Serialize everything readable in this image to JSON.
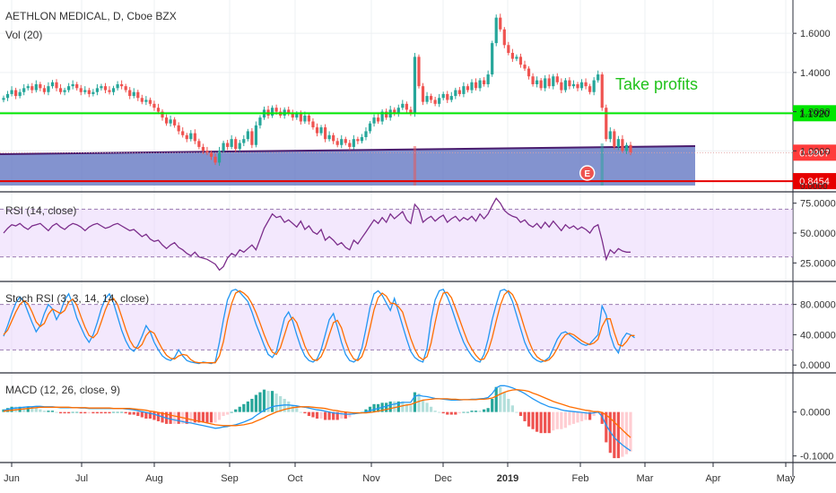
{
  "chart_data": {
    "type": "candlestick",
    "title": "AETHLON MEDICAL, D, Cboe BZX",
    "volume_label": "Vol (20)",
    "annotation": "Take profits",
    "earnings_marker": "E",
    "x_axis": {
      "ticks": [
        "Jun",
        "Jul",
        "Aug",
        "Sep",
        "Oct",
        "Nov",
        "Dec",
        "2019",
        "Feb",
        "Mar",
        "Apr",
        "May"
      ]
    },
    "price_panel": {
      "y_ticks": [
        "1.6000",
        "1.4000",
        "1.2000",
        "1.0000"
      ],
      "ylim": [
        0.8,
        1.77
      ],
      "horizontal_lines": [
        {
          "name": "resistance",
          "value": 1.192,
          "label": "1.1920",
          "color": "#00e600"
        },
        {
          "name": "support",
          "value": 0.8454,
          "label": "0.8454",
          "color": "#e60000"
        }
      ],
      "last_price": {
        "value": 0.9907,
        "label": "0.9907",
        "color": "#ff3b3b"
      },
      "volume_zero_label": "0.0000",
      "closes": [
        1.27,
        1.29,
        1.31,
        1.28,
        1.3,
        1.32,
        1.33,
        1.31,
        1.34,
        1.32,
        1.3,
        1.33,
        1.35,
        1.32,
        1.3,
        1.31,
        1.33,
        1.34,
        1.32,
        1.3,
        1.31,
        1.29,
        1.3,
        1.32,
        1.33,
        1.31,
        1.3,
        1.32,
        1.34,
        1.33,
        1.31,
        1.28,
        1.3,
        1.27,
        1.25,
        1.26,
        1.24,
        1.22,
        1.2,
        1.17,
        1.14,
        1.16,
        1.13,
        1.1,
        1.08,
        1.06,
        1.09,
        1.05,
        1.02,
        1.0,
        0.99,
        0.97,
        0.94,
        1.0,
        1.04,
        1.02,
        1.06,
        1.01,
        1.04,
        1.06,
        1.1,
        1.03,
        1.13,
        1.17,
        1.21,
        1.18,
        1.22,
        1.2,
        1.18,
        1.21,
        1.19,
        1.17,
        1.19,
        1.15,
        1.18,
        1.15,
        1.12,
        1.09,
        1.12,
        1.06,
        1.08,
        1.05,
        1.03,
        1.06,
        1.04,
        1.02,
        1.06,
        1.05,
        1.07,
        1.1,
        1.14,
        1.17,
        1.15,
        1.2,
        1.17,
        1.21,
        1.19,
        1.22,
        1.24,
        1.21,
        1.19,
        1.48,
        1.33,
        1.25,
        1.28,
        1.26,
        1.24,
        1.27,
        1.29,
        1.26,
        1.28,
        1.31,
        1.29,
        1.33,
        1.31,
        1.35,
        1.32,
        1.36,
        1.34,
        1.39,
        1.55,
        1.68,
        1.62,
        1.54,
        1.5,
        1.47,
        1.48,
        1.44,
        1.42,
        1.38,
        1.34,
        1.36,
        1.32,
        1.37,
        1.33,
        1.38,
        1.35,
        1.31,
        1.36,
        1.33,
        1.34,
        1.32,
        1.35,
        1.33,
        1.3,
        1.36,
        1.39,
        1.22,
        1.06,
        1.1,
        1.02,
        1.06,
        1.0,
        1.03,
        0.99
      ],
      "earnings_index": 146
    },
    "rsi_panel": {
      "label": "RSI (14, close)",
      "y_ticks": [
        "75.0000",
        "50.0000",
        "25.0000"
      ],
      "ylim": [
        11,
        83
      ],
      "band": [
        30,
        70
      ],
      "values": [
        50,
        54,
        57,
        56,
        58,
        55,
        53,
        56,
        57,
        58,
        55,
        52,
        56,
        58,
        55,
        53,
        56,
        58,
        57,
        55,
        52,
        55,
        57,
        58,
        56,
        54,
        55,
        57,
        58,
        56,
        54,
        52,
        53,
        50,
        47,
        49,
        45,
        43,
        44,
        40,
        37,
        40,
        42,
        38,
        36,
        33,
        31,
        34,
        30,
        29,
        28,
        26,
        24,
        19,
        22,
        29,
        33,
        31,
        36,
        34,
        37,
        40,
        36,
        45,
        54,
        60,
        66,
        63,
        64,
        59,
        61,
        58,
        55,
        60,
        53,
        56,
        51,
        49,
        53,
        44,
        47,
        44,
        40,
        42,
        38,
        36,
        44,
        41,
        46,
        51,
        56,
        61,
        58,
        63,
        59,
        66,
        62,
        65,
        68,
        61,
        58,
        74,
        70,
        59,
        62,
        64,
        60,
        63,
        65,
        59,
        62,
        64,
        60,
        63,
        61,
        64,
        60,
        66,
        62,
        66,
        73,
        79,
        75,
        69,
        66,
        64,
        63,
        59,
        61,
        57,
        55,
        58,
        54,
        59,
        55,
        60,
        56,
        52,
        57,
        54,
        56,
        53,
        55,
        53,
        50,
        55,
        57,
        44,
        28,
        36,
        33,
        37,
        35,
        34,
        34
      ],
      "color": "#7b2d8b"
    },
    "stoch_rsi_panel": {
      "label": "Stoch RSI (3, 3, 14, 14, close)",
      "y_ticks": [
        "80.0000",
        "40.0000",
        "0.0000"
      ],
      "ylim": [
        -8,
        108
      ],
      "band": [
        20,
        80
      ],
      "k_values": [
        38,
        52,
        68,
        82,
        90,
        84,
        70,
        56,
        44,
        52,
        68,
        80,
        74,
        60,
        70,
        86,
        94,
        80,
        62,
        50,
        38,
        30,
        40,
        56,
        74,
        88,
        94,
        82,
        64,
        46,
        32,
        22,
        18,
        26,
        38,
        52,
        44,
        30,
        20,
        12,
        8,
        6,
        10,
        20,
        12,
        6,
        4,
        3,
        2,
        4,
        3,
        2,
        4,
        30,
        60,
        86,
        98,
        100,
        96,
        90,
        84,
        70,
        54,
        40,
        26,
        14,
        10,
        18,
        40,
        62,
        70,
        58,
        40,
        24,
        12,
        6,
        4,
        8,
        20,
        40,
        60,
        68,
        50,
        30,
        14,
        6,
        4,
        8,
        22,
        48,
        76,
        94,
        98,
        92,
        82,
        72,
        88,
        70,
        52,
        34,
        18,
        10,
        6,
        4,
        22,
        60,
        86,
        98,
        100,
        90,
        76,
        60,
        44,
        30,
        20,
        12,
        6,
        4,
        14,
        34,
        60,
        80,
        98,
        100,
        96,
        84,
        66,
        48,
        30,
        18,
        10,
        6,
        4,
        6,
        10,
        22,
        34,
        42,
        44,
        40,
        36,
        32,
        28,
        26,
        28,
        34,
        40,
        78,
        66,
        40,
        24,
        16,
        34,
        42,
        40,
        36
      ],
      "d_values": [
        40,
        46,
        58,
        70,
        80,
        85,
        81,
        70,
        57,
        51,
        55,
        67,
        74,
        71,
        68,
        72,
        83,
        87,
        79,
        64,
        50,
        39,
        36,
        42,
        57,
        73,
        85,
        88,
        80,
        64,
        47,
        33,
        24,
        22,
        27,
        39,
        45,
        42,
        31,
        21,
        13,
        9,
        8,
        12,
        14,
        13,
        7,
        4,
        3,
        3,
        3,
        3,
        3,
        12,
        31,
        59,
        81,
        95,
        98,
        95,
        90,
        81,
        69,
        55,
        40,
        27,
        17,
        14,
        23,
        40,
        57,
        63,
        56,
        41,
        25,
        14,
        7,
        6,
        11,
        23,
        40,
        56,
        59,
        49,
        31,
        17,
        8,
        6,
        11,
        26,
        49,
        73,
        89,
        95,
        91,
        82,
        81,
        77,
        70,
        52,
        35,
        21,
        11,
        7,
        11,
        29,
        56,
        81,
        95,
        96,
        89,
        75,
        60,
        45,
        31,
        21,
        13,
        7,
        8,
        18,
        36,
        58,
        79,
        93,
        98,
        93,
        82,
        66,
        48,
        32,
        19,
        11,
        7,
        5,
        7,
        13,
        22,
        33,
        40,
        42,
        40,
        36,
        32,
        29,
        27,
        29,
        34,
        51,
        61,
        61,
        43,
        27,
        25,
        31,
        39,
        39
      ],
      "k_color": "#2196f3",
      "d_color": "#ff6d00"
    },
    "macd_panel": {
      "label": "MACD (12, 26, close, 9)",
      "y_ticks": [
        "0.0000",
        "-0.1000"
      ],
      "ylim": [
        -0.115,
        0.085
      ],
      "macd_color": "#2196f3",
      "signal_color": "#ff6d00",
      "macd": [
        0.004,
        0.006,
        0.008,
        0.009,
        0.01,
        0.011,
        0.012,
        0.012,
        0.013,
        0.013,
        0.012,
        0.012,
        0.012,
        0.011,
        0.01,
        0.01,
        0.01,
        0.01,
        0.01,
        0.009,
        0.009,
        0.008,
        0.008,
        0.008,
        0.008,
        0.008,
        0.008,
        0.008,
        0.008,
        0.008,
        0.007,
        0.006,
        0.005,
        0.003,
        0.001,
        -0.001,
        -0.003,
        -0.005,
        -0.008,
        -0.011,
        -0.014,
        -0.016,
        -0.018,
        -0.02,
        -0.022,
        -0.024,
        -0.025,
        -0.027,
        -0.029,
        -0.031,
        -0.033,
        -0.035,
        -0.037,
        -0.036,
        -0.034,
        -0.033,
        -0.031,
        -0.029,
        -0.026,
        -0.023,
        -0.019,
        -0.015,
        -0.008,
        -0.002,
        0.004,
        0.008,
        0.012,
        0.014,
        0.015,
        0.016,
        0.016,
        0.015,
        0.014,
        0.012,
        0.011,
        0.009,
        0.007,
        0.005,
        0.004,
        0.002,
        0.0,
        -0.002,
        -0.003,
        -0.004,
        -0.005,
        -0.005,
        -0.004,
        -0.003,
        -0.002,
        0.0,
        0.003,
        0.006,
        0.008,
        0.011,
        0.013,
        0.016,
        0.018,
        0.02,
        0.022,
        0.022,
        0.022,
        0.036,
        0.038,
        0.036,
        0.035,
        0.033,
        0.031,
        0.03,
        0.029,
        0.028,
        0.027,
        0.027,
        0.027,
        0.028,
        0.028,
        0.029,
        0.029,
        0.03,
        0.031,
        0.033,
        0.042,
        0.055,
        0.06,
        0.06,
        0.058,
        0.055,
        0.051,
        0.047,
        0.042,
        0.036,
        0.03,
        0.025,
        0.02,
        0.016,
        0.012,
        0.01,
        0.008,
        0.005,
        0.003,
        0.002,
        0.001,
        0.0,
        -0.001,
        -0.002,
        -0.003,
        -0.002,
        0.0,
        -0.01,
        -0.03,
        -0.045,
        -0.058,
        -0.067,
        -0.075,
        -0.082,
        -0.088
      ],
      "signal": [
        0.002,
        0.003,
        0.004,
        0.005,
        0.006,
        0.007,
        0.008,
        0.009,
        0.01,
        0.011,
        0.011,
        0.011,
        0.011,
        0.011,
        0.011,
        0.011,
        0.011,
        0.01,
        0.01,
        0.01,
        0.01,
        0.009,
        0.009,
        0.009,
        0.009,
        0.009,
        0.009,
        0.008,
        0.008,
        0.008,
        0.008,
        0.008,
        0.007,
        0.006,
        0.005,
        0.004,
        0.002,
        0.001,
        -0.001,
        -0.003,
        -0.005,
        -0.007,
        -0.009,
        -0.011,
        -0.013,
        -0.015,
        -0.017,
        -0.019,
        -0.021,
        -0.023,
        -0.025,
        -0.027,
        -0.029,
        -0.03,
        -0.031,
        -0.031,
        -0.031,
        -0.031,
        -0.03,
        -0.029,
        -0.027,
        -0.025,
        -0.021,
        -0.017,
        -0.013,
        -0.008,
        -0.004,
        0.0,
        0.003,
        0.006,
        0.008,
        0.01,
        0.011,
        0.012,
        0.012,
        0.012,
        0.011,
        0.01,
        0.009,
        0.008,
        0.006,
        0.004,
        0.003,
        0.001,
        0.0,
        -0.001,
        -0.002,
        -0.002,
        -0.002,
        -0.002,
        -0.001,
        0.0,
        0.002,
        0.004,
        0.006,
        0.008,
        0.01,
        0.012,
        0.014,
        0.016,
        0.017,
        0.021,
        0.024,
        0.027,
        0.028,
        0.029,
        0.03,
        0.03,
        0.03,
        0.03,
        0.029,
        0.029,
        0.028,
        0.028,
        0.028,
        0.028,
        0.028,
        0.029,
        0.029,
        0.03,
        0.032,
        0.036,
        0.041,
        0.045,
        0.048,
        0.05,
        0.051,
        0.05,
        0.049,
        0.047,
        0.043,
        0.04,
        0.036,
        0.032,
        0.028,
        0.024,
        0.021,
        0.018,
        0.015,
        0.012,
        0.01,
        0.008,
        0.006,
        0.004,
        0.003,
        0.001,
        0.001,
        -0.001,
        -0.007,
        -0.014,
        -0.023,
        -0.032,
        -0.041,
        -0.05,
        -0.058
      ]
    }
  }
}
